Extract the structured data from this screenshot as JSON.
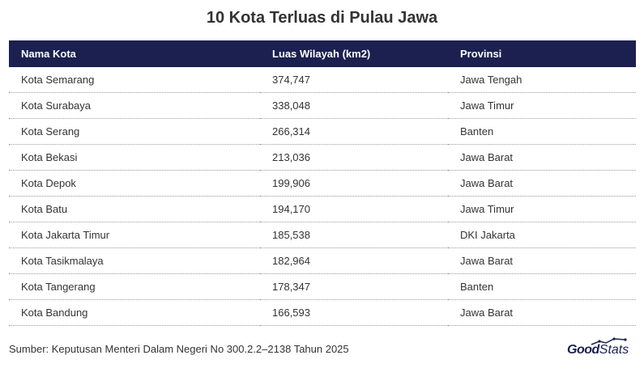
{
  "chart_data": {
    "type": "table",
    "title": "10 Kota Terluas di Pulau Jawa",
    "columns": [
      "Nama Kota",
      "Luas Wilayah (km2)",
      "Provinsi"
    ],
    "rows": [
      [
        "Kota Semarang",
        "374,747",
        "Jawa Tengah"
      ],
      [
        "Kota Surabaya",
        "338,048",
        "Jawa Timur"
      ],
      [
        "Kota Serang",
        "266,314",
        "Banten"
      ],
      [
        "Kota Bekasi",
        "213,036",
        "Jawa Barat"
      ],
      [
        "Kota Depok",
        "199,906",
        "Jawa Barat"
      ],
      [
        "Kota Batu",
        "194,170",
        "Jawa Timur"
      ],
      [
        "Kota Jakarta Timur",
        "185,538",
        "DKI Jakarta"
      ],
      [
        "Kota Tasikmalaya",
        "182,964",
        "Jawa Barat"
      ],
      [
        "Kota Tangerang",
        "178,347",
        "Banten"
      ],
      [
        "Kota Bandung",
        "166,593",
        "Jawa Barat"
      ]
    ],
    "header_color": "#1b2051"
  },
  "footer": {
    "source": "Sumber: Keputusan Menteri Dalam Negeri No 300.2.2–2138 Tahun 2025",
    "logo_good": "Good",
    "logo_stats": "Stats"
  },
  "icons": {
    "logo_mark": "trend-line-icon"
  }
}
